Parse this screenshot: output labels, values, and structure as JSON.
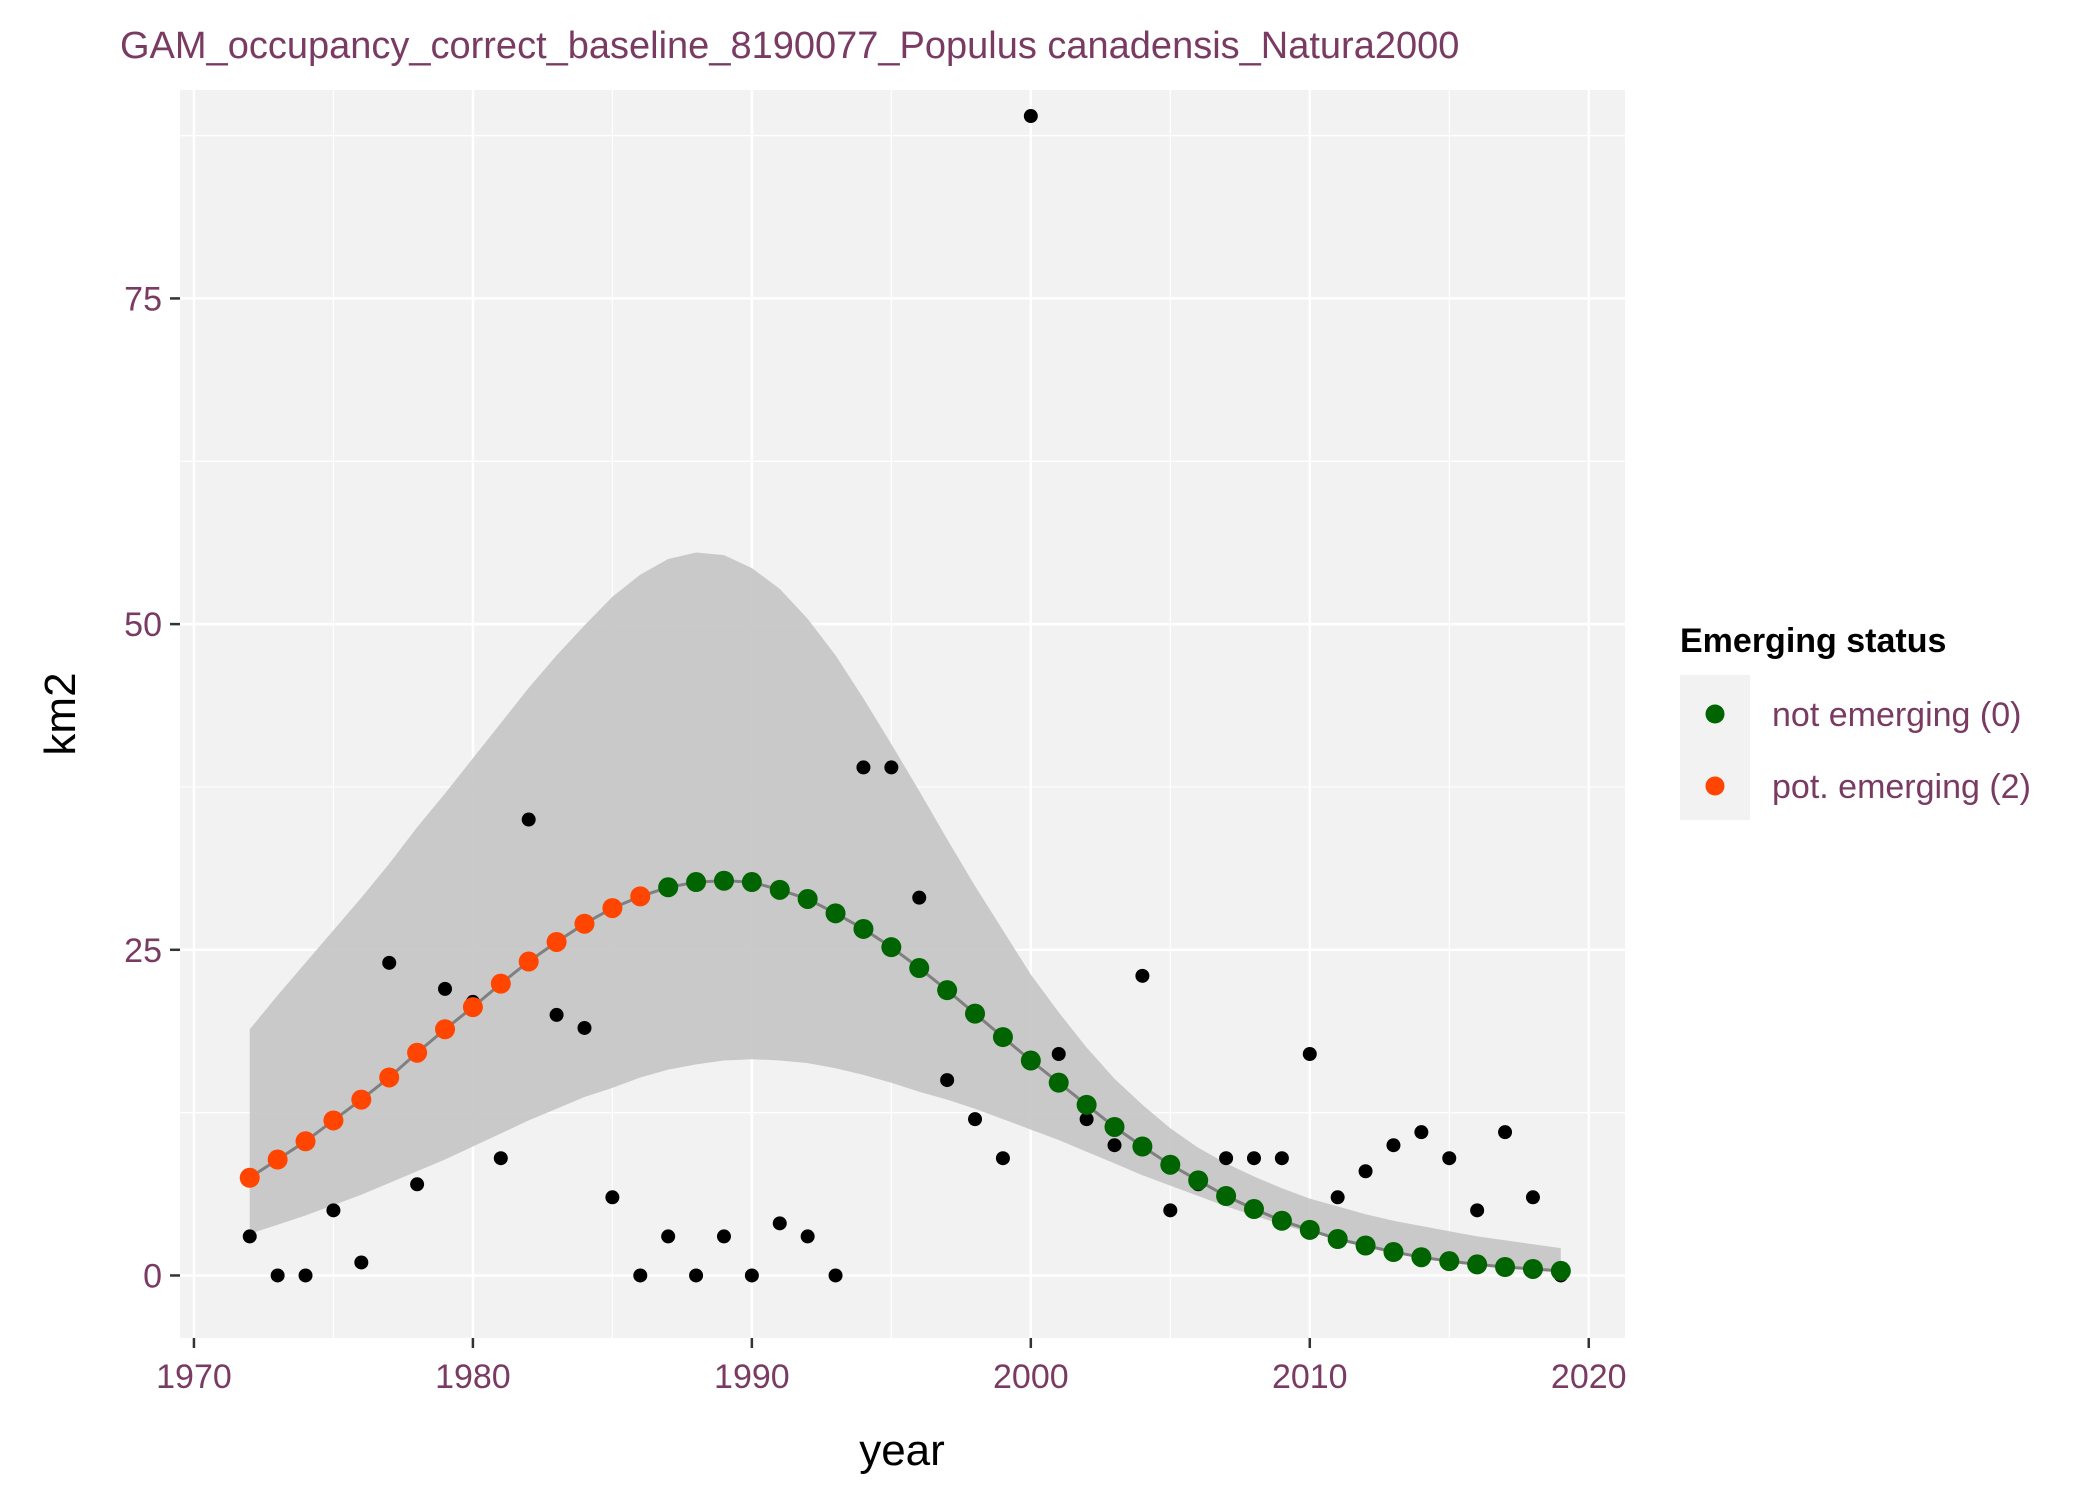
{
  "chart_data": {
    "type": "scatter",
    "title": "GAM_occupancy_correct_baseline_8190077_Populus canadensis_Natura2000",
    "xlabel": "year",
    "ylabel": "km2",
    "xlim": [
      1969.5,
      2021.3
    ],
    "ylim": [
      -4.8,
      91.0
    ],
    "x_ticks": [
      1970,
      1980,
      1990,
      2000,
      2010,
      2020
    ],
    "y_ticks": [
      0,
      25,
      50,
      75
    ],
    "grid": true,
    "legend": {
      "title": "Emerging status",
      "placement": "right",
      "entries": [
        {
          "label": "not emerging (0)",
          "color": "#006400"
        },
        {
          "label": "pot. emerging (2)",
          "color": "#ff4500"
        }
      ]
    },
    "colors": {
      "panel_background": "#f2f2f2",
      "grid": "#ffffff",
      "ribbon": "#c4c4c4",
      "fit_line": "#808080",
      "observed_points": "#000000",
      "not_emerging": "#006400",
      "pot_emerging": "#ff4500",
      "text_accent": "#7a3b63"
    },
    "observed": {
      "x": [
        1972,
        1973,
        1974,
        1975,
        1976,
        1977,
        1978,
        1979,
        1980,
        1981,
        1982,
        1983,
        1984,
        1985,
        1986,
        1987,
        1988,
        1989,
        1990,
        1991,
        1992,
        1993,
        1994,
        1995,
        1996,
        1997,
        1998,
        1999,
        2000,
        2001,
        2002,
        2003,
        2004,
        2005,
        2006,
        2007,
        2008,
        2009,
        2010,
        2011,
        2012,
        2013,
        2014,
        2015,
        2016,
        2017,
        2018,
        2019
      ],
      "y": [
        3,
        0,
        0,
        5,
        1,
        24,
        7,
        22,
        21,
        9,
        35,
        20,
        19,
        6,
        0,
        3,
        0,
        3,
        0,
        4,
        3,
        0,
        39,
        39,
        29,
        15,
        12,
        9,
        89,
        17,
        12,
        10,
        23,
        5,
        7,
        9,
        9,
        9,
        17,
        6,
        8,
        10,
        11,
        9,
        5,
        11,
        6,
        0
      ]
    },
    "fit": {
      "x": [
        1972,
        1973,
        1974,
        1975,
        1976,
        1977,
        1978,
        1979,
        1980,
        1981,
        1982,
        1983,
        1984,
        1985,
        1986,
        1987,
        1988,
        1989,
        1990,
        1991,
        1992,
        1993,
        1994,
        1995,
        1996,
        1997,
        1998,
        1999,
        2000,
        2001,
        2002,
        2003,
        2004,
        2005,
        2006,
        2007,
        2008,
        2009,
        2010,
        2011,
        2012,
        2013,
        2014,
        2015,
        2016,
        2017,
        2018,
        2019
      ],
      "y": [
        7.5,
        8.9,
        10.3,
        11.9,
        13.5,
        15.2,
        17.1,
        18.9,
        20.6,
        22.4,
        24.1,
        25.6,
        27.0,
        28.2,
        29.1,
        29.8,
        30.2,
        30.3,
        30.2,
        29.6,
        28.9,
        27.8,
        26.6,
        25.2,
        23.6,
        21.9,
        20.1,
        18.3,
        16.5,
        14.8,
        13.1,
        11.4,
        9.9,
        8.5,
        7.3,
        6.1,
        5.1,
        4.2,
        3.5,
        2.8,
        2.3,
        1.8,
        1.4,
        1.1,
        0.85,
        0.65,
        0.5,
        0.35
      ],
      "status": [
        2,
        2,
        2,
        2,
        2,
        2,
        2,
        2,
        2,
        2,
        2,
        2,
        2,
        2,
        2,
        0,
        0,
        0,
        0,
        0,
        0,
        0,
        0,
        0,
        0,
        0,
        0,
        0,
        0,
        0,
        0,
        0,
        0,
        0,
        0,
        0,
        0,
        0,
        0,
        0,
        0,
        0,
        0,
        0,
        0,
        0,
        0,
        0
      ],
      "lower": [
        3.2,
        3.9,
        4.6,
        5.4,
        6.2,
        7.1,
        8.0,
        8.9,
        9.9,
        10.9,
        11.9,
        12.8,
        13.7,
        14.4,
        15.2,
        15.8,
        16.2,
        16.5,
        16.6,
        16.5,
        16.3,
        15.9,
        15.4,
        14.8,
        14.1,
        13.5,
        12.8,
        12.0,
        11.2,
        10.4,
        9.5,
        8.6,
        7.7,
        6.9,
        6.1,
        5.3,
        4.6,
        3.9,
        3.3,
        2.8,
        2.3,
        1.9,
        1.5,
        1.2,
        0.9,
        0.7,
        0.5,
        0.35
      ],
      "upper": [
        18.9,
        21.5,
        24.0,
        26.5,
        29.0,
        31.6,
        34.4,
        37.0,
        39.7,
        42.4,
        45.1,
        47.6,
        49.9,
        52.1,
        53.8,
        55.0,
        55.5,
        55.3,
        54.3,
        52.7,
        50.4,
        47.6,
        44.3,
        40.8,
        37.2,
        33.5,
        29.9,
        26.5,
        23.1,
        20.2,
        17.5,
        15.1,
        13.1,
        11.3,
        9.8,
        8.6,
        7.6,
        6.7,
        5.9,
        5.3,
        4.7,
        4.2,
        3.8,
        3.4,
        3.0,
        2.7,
        2.4,
        2.1
      ]
    }
  }
}
